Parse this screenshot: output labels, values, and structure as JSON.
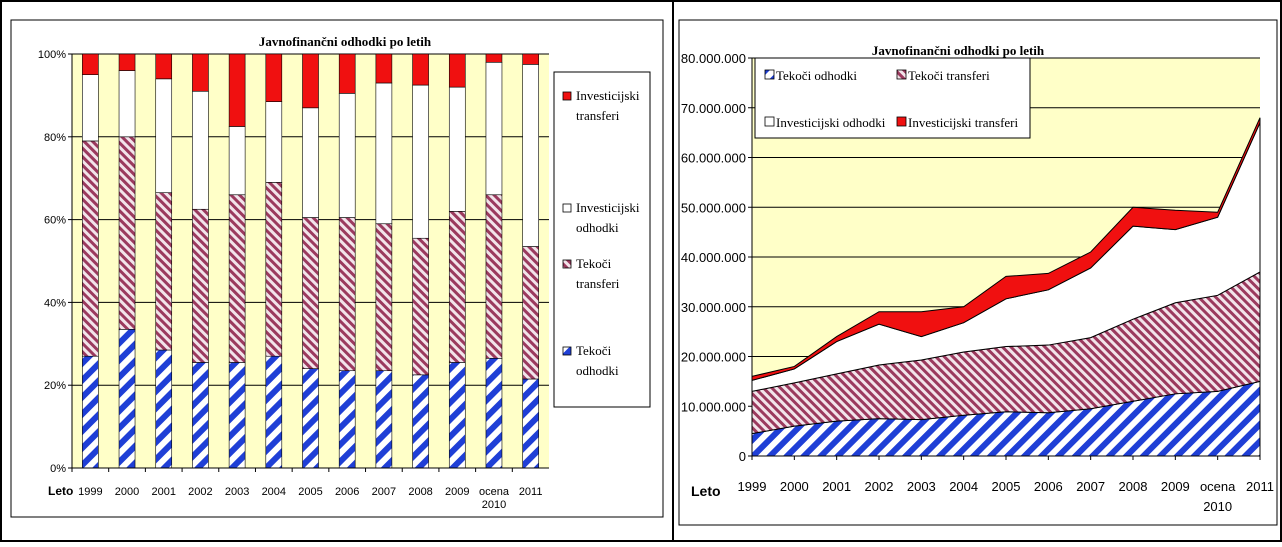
{
  "colors": {
    "plot_bg": "#FFFFC8",
    "tekoci_odhodki": "#1F3FD6",
    "tekoci_transferi": "#9B3A5E",
    "investicijski_odhodki": "#FFFFFF",
    "investicijski_transferi": "#F01010"
  },
  "chart_data": [
    {
      "type": "bar",
      "stacked": "percent",
      "title": "Javnofinančni odhodki po letih",
      "xlabel": "Leto",
      "ylabel": "",
      "categories": [
        "1999",
        "2000",
        "2001",
        "2002",
        "2003",
        "2004",
        "2005",
        "2006",
        "2007",
        "2008",
        "2009",
        "ocena 2010",
        "2011"
      ],
      "yticks": [
        "0%",
        "20%",
        "40%",
        "60%",
        "80%",
        "100%"
      ],
      "ylim": [
        0,
        100
      ],
      "grid": true,
      "legend": "right",
      "series": [
        {
          "name": "Tekoči odhodki",
          "values": [
            27,
            33.5,
            28.5,
            25.5,
            25.5,
            27,
            24,
            23.5,
            23.5,
            22.5,
            25.5,
            26.5,
            21.5
          ]
        },
        {
          "name": "Tekoči transferi",
          "values": [
            52,
            46.5,
            38,
            37,
            40.5,
            42,
            36.5,
            37,
            35.5,
            33,
            36.5,
            39.5,
            32
          ]
        },
        {
          "name": "Investicijski odhodki",
          "values": [
            16,
            16,
            27.5,
            28.5,
            16.5,
            19.5,
            26.5,
            30,
            34,
            37,
            30,
            32,
            44
          ]
        },
        {
          "name": "Investicijski transferi",
          "values": [
            5,
            4,
            6,
            9,
            17.5,
            11.5,
            13,
            9.5,
            7,
            7.5,
            8,
            2,
            2.5
          ]
        }
      ],
      "legend_entries": [
        {
          "key": "investicijski_transferi",
          "line1": "Investicijski",
          "line2": "transferi"
        },
        {
          "key": "investicijski_odhodki",
          "line1": "Investicijski",
          "line2": "odhodki"
        },
        {
          "key": "tekoci_transferi",
          "line1": "Tekoči",
          "line2": "transferi"
        },
        {
          "key": "tekoci_odhodki",
          "line1": "Tekoči",
          "line2": "odhodki"
        }
      ]
    },
    {
      "type": "area",
      "stacked": true,
      "title": "Javnofinančni odhodki po letih",
      "xlabel": "Leto",
      "ylabel": "",
      "categories": [
        "1999",
        "2000",
        "2001",
        "2002",
        "2003",
        "2004",
        "2005",
        "2006",
        "2007",
        "2008",
        "2009",
        "ocena 2010",
        "2011"
      ],
      "yticks": [
        "0",
        "10.000.000",
        "20.000.000",
        "30.000.000",
        "40.000.000",
        "50.000.000",
        "60.000.000",
        "70.000.000",
        "80.000.000"
      ],
      "ylim": [
        0,
        80000000
      ],
      "grid": true,
      "legend": "top-left",
      "series": [
        {
          "name": "Tekoči odhodki",
          "values": [
            4500000,
            6000000,
            7000000,
            7500000,
            7300000,
            8200000,
            8900000,
            8700000,
            9500000,
            11000000,
            12500000,
            13000000,
            15000000
          ]
        },
        {
          "name": "Tekoči transferi",
          "values": [
            8500000,
            8700000,
            9500000,
            10800000,
            12000000,
            12700000,
            13100000,
            13600000,
            14300000,
            16500000,
            18300000,
            19300000,
            22000000
          ]
        },
        {
          "name": "Investicijski odhodki",
          "values": [
            2200000,
            2800000,
            6500000,
            8200000,
            4700000,
            5900000,
            9600000,
            11100000,
            14000000,
            18700000,
            14700000,
            15700000,
            30000000
          ]
        },
        {
          "name": "Investicijski transferi",
          "values": [
            800000,
            500000,
            1000000,
            2500000,
            5000000,
            3200000,
            4500000,
            3300000,
            3200000,
            3800000,
            3900000,
            1000000,
            1000000
          ]
        }
      ],
      "legend_entries": [
        {
          "key": "tekoci_odhodki",
          "label": "Tekoči odhodki"
        },
        {
          "key": "tekoci_transferi",
          "label": "Tekoči transferi"
        },
        {
          "key": "investicijski_odhodki",
          "label": "Investicijski odhodki"
        },
        {
          "key": "investicijski_transferi",
          "label": "Investicijski transferi"
        }
      ]
    }
  ]
}
